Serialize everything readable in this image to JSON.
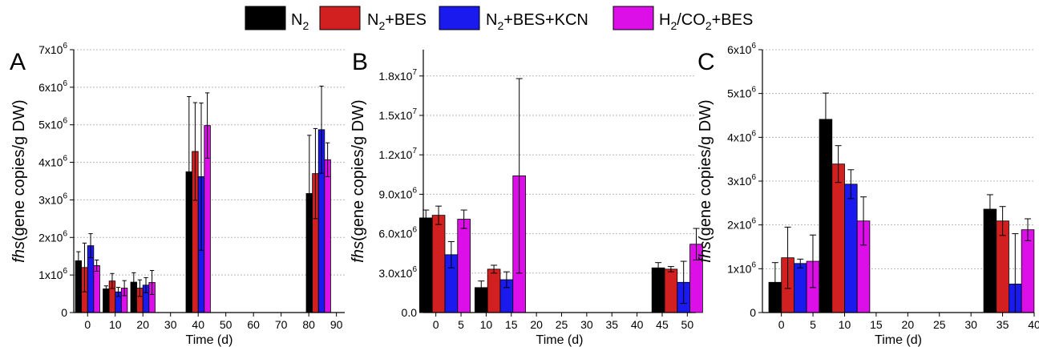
{
  "legend": {
    "items": [
      {
        "key": "n2",
        "base": "N",
        "sub": "2",
        "tail": "",
        "color": "#000000"
      },
      {
        "key": "n2_bes",
        "base": "N",
        "sub": "2",
        "tail": "+BES",
        "color": "#d21f1f"
      },
      {
        "key": "n2_bes_kcn",
        "base": "N",
        "sub": "2",
        "tail": "+BES+KCN",
        "color": "#1a1aee"
      },
      {
        "key": "h2co2_bes",
        "base": "H",
        "sub": "2",
        "mid": "/CO",
        "sub2": "2",
        "tail": "+BES",
        "color": "#dd0fe8"
      }
    ]
  },
  "chart_data": [
    {
      "panel": "A",
      "type": "bar",
      "xlabel": "Time (d)",
      "ylabel_italic": "fhs",
      "ylabel": "(gene copies/g DW)",
      "xlim": [
        -5,
        93
      ],
      "xticks": [
        0,
        10,
        20,
        30,
        40,
        50,
        60,
        70,
        80,
        90
      ],
      "ylim": [
        0,
        7000000
      ],
      "yticks": [
        {
          "v": 0,
          "m": "0",
          "e": ""
        },
        {
          "v": 1000000,
          "m": "1x10",
          "e": "6"
        },
        {
          "v": 2000000,
          "m": "2x10",
          "e": "6"
        },
        {
          "v": 3000000,
          "m": "3x10",
          "e": "6"
        },
        {
          "v": 4000000,
          "m": "4x10",
          "e": "6"
        },
        {
          "v": 5000000,
          "m": "5x10",
          "e": "6"
        },
        {
          "v": 6000000,
          "m": "6x10",
          "e": "6"
        },
        {
          "v": 7000000,
          "m": "7x10",
          "e": "6"
        }
      ],
      "group_times": [
        0,
        10,
        20,
        40,
        83.5
      ],
      "series": [
        {
          "key": "n2",
          "values": [
            1380000,
            630000,
            810000,
            3750000,
            3170000
          ],
          "errors": [
            240000,
            80000,
            250000,
            2000000,
            1550000
          ]
        },
        {
          "key": "n2_bes",
          "values": [
            1200000,
            840000,
            650000,
            4290000,
            3700000
          ],
          "errors": [
            650000,
            200000,
            220000,
            1300000,
            1200000
          ]
        },
        {
          "key": "n2_bes_kcn",
          "values": [
            1780000,
            550000,
            730000,
            3620000,
            4870000
          ],
          "errors": [
            320000,
            120000,
            200000,
            1960000,
            1160000
          ]
        },
        {
          "key": "h2co2_bes",
          "values": [
            1250000,
            650000,
            800000,
            4980000,
            4070000
          ],
          "errors": [
            150000,
            200000,
            320000,
            870000,
            450000
          ]
        }
      ]
    },
    {
      "panel": "B",
      "type": "bar",
      "xlabel": "Time (d)",
      "ylabel_italic": "fhs",
      "ylabel": "(gene copies/g DW)",
      "xlim": [
        -2.5,
        51.7
      ],
      "xticks": [
        0,
        5,
        10,
        15,
        20,
        25,
        30,
        35,
        40,
        45,
        50
      ],
      "ylim": [
        0,
        20000000
      ],
      "yticks": [
        {
          "v": 0,
          "m": "0.0",
          "e": ""
        },
        {
          "v": 3000000,
          "m": "3.0x10",
          "e": "6"
        },
        {
          "v": 6000000,
          "m": "6.0x10",
          "e": "6"
        },
        {
          "v": 9000000,
          "m": "9.0x10",
          "e": "6"
        },
        {
          "v": 12000000,
          "m": "1.2x10",
          "e": "7"
        },
        {
          "v": 15000000,
          "m": "1.5x10",
          "e": "7"
        },
        {
          "v": 18000000,
          "m": "1.8x10",
          "e": "7"
        }
      ],
      "group_times": [
        1.8,
        12.8,
        48
      ],
      "series": [
        {
          "key": "n2",
          "values": [
            7200000,
            1900000,
            3400000
          ],
          "errors": [
            600000,
            500000,
            400000
          ]
        },
        {
          "key": "n2_bes",
          "values": [
            7400000,
            3300000,
            3300000
          ],
          "errors": [
            700000,
            300000,
            200000
          ]
        },
        {
          "key": "n2_bes_kcn",
          "values": [
            4400000,
            2500000,
            2300000
          ],
          "errors": [
            1000000,
            600000,
            1600000
          ]
        },
        {
          "key": "h2co2_bes",
          "values": [
            7100000,
            10400000,
            5200000
          ],
          "errors": [
            700000,
            7400000,
            1200000
          ]
        }
      ]
    },
    {
      "panel": "C",
      "type": "bar",
      "xlabel": "Time (d)",
      "ylabel_italic": "fhs",
      "ylabel": "(gene copies/g DW)",
      "xlim": [
        -3,
        40
      ],
      "xticks": [
        0,
        5,
        10,
        15,
        20,
        25,
        30,
        35,
        40
      ],
      "ylim": [
        0,
        6000000
      ],
      "yticks": [
        {
          "v": 0,
          "m": "0",
          "e": ""
        },
        {
          "v": 1000000,
          "m": "1x10",
          "e": "6"
        },
        {
          "v": 2000000,
          "m": "2x10",
          "e": "6"
        },
        {
          "v": 3000000,
          "m": "3x10",
          "e": "6"
        },
        {
          "v": 4000000,
          "m": "4x10",
          "e": "6"
        },
        {
          "v": 5000000,
          "m": "5x10",
          "e": "6"
        },
        {
          "v": 6000000,
          "m": "6x10",
          "e": "6"
        }
      ],
      "group_times": [
        2,
        10,
        36
      ],
      "series": [
        {
          "key": "n2",
          "values": [
            690000,
            4410000,
            2360000
          ],
          "errors": [
            450000,
            600000,
            330000
          ]
        },
        {
          "key": "n2_bes",
          "values": [
            1250000,
            3390000,
            2090000
          ],
          "errors": [
            700000,
            420000,
            330000
          ]
        },
        {
          "key": "n2_bes_kcn",
          "values": [
            1120000,
            2930000,
            650000
          ],
          "errors": [
            100000,
            330000,
            1150000
          ]
        },
        {
          "key": "h2co2_bes",
          "values": [
            1170000,
            2090000,
            1890000
          ],
          "errors": [
            600000,
            550000,
            250000
          ]
        }
      ]
    }
  ]
}
